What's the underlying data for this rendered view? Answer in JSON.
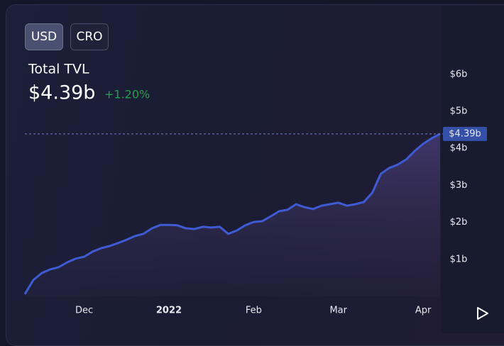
{
  "currency_options": [
    "USD",
    "CRO"
  ],
  "chart_data": {
    "type": "area",
    "title": "Total TVL",
    "subtitle": "+1.20%",
    "categories": [
      null,
      null,
      null,
      null,
      null,
      null,
      null,
      "Dec",
      null,
      null,
      null,
      null,
      null,
      null,
      null,
      null,
      null,
      "2022",
      null,
      null,
      null,
      null,
      null,
      null,
      null,
      null,
      null,
      "Feb",
      null,
      null,
      null,
      null,
      null,
      null,
      null,
      null,
      null,
      "Mar",
      null,
      null,
      null,
      null,
      null,
      null,
      null,
      null,
      null,
      "Apr",
      null,
      null
    ],
    "series": [
      {
        "name": "TVL",
        "color": "#3e5bd4",
        "values": [
          0.06,
          0.44,
          0.63,
          0.73,
          0.79,
          0.92,
          1.02,
          1.07,
          1.21,
          1.3,
          1.36,
          1.44,
          1.53,
          1.63,
          1.69,
          1.84,
          1.93,
          1.93,
          1.92,
          1.84,
          1.82,
          1.88,
          1.86,
          1.88,
          1.69,
          1.78,
          1.92,
          2.01,
          2.03,
          2.16,
          2.3,
          2.34,
          2.49,
          2.41,
          2.36,
          2.45,
          2.49,
          2.53,
          2.45,
          2.49,
          2.55,
          2.8,
          3.31,
          3.47,
          3.56,
          3.7,
          3.93,
          4.12,
          4.27,
          4.39
        ],
        "value_labels": [
          null,
          null,
          null,
          null,
          null,
          null,
          null,
          null,
          null,
          null,
          null,
          null,
          null,
          null,
          null,
          null,
          null,
          null,
          null,
          null,
          null,
          null,
          null,
          null,
          null,
          null,
          null,
          null,
          null,
          null,
          null,
          null,
          null,
          null,
          null,
          null,
          null,
          null,
          null,
          null,
          null,
          null,
          null,
          null,
          null,
          null,
          null,
          null,
          null,
          "$4.39b"
        ]
      }
    ],
    "ylim": [
      0,
      6.3
    ],
    "yticks": [
      {
        "value": 1,
        "label": "$1b"
      },
      {
        "value": 2,
        "label": "$2b"
      },
      {
        "value": 3,
        "label": "$3b"
      },
      {
        "value": 4,
        "label": "$4b"
      },
      {
        "value": 5,
        "label": "$5b"
      },
      {
        "value": 6,
        "label": "$6b"
      }
    ],
    "grid": false
  }
}
